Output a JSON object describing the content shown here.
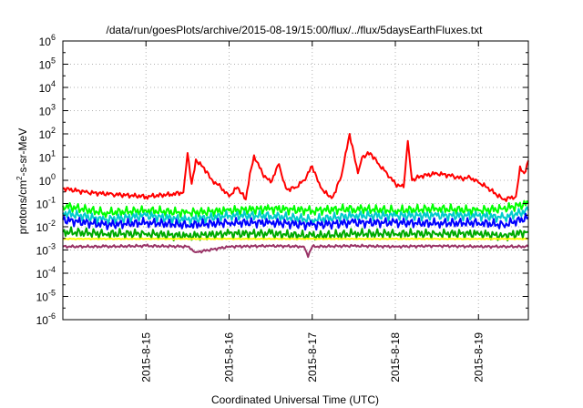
{
  "chart_data": {
    "type": "line",
    "title": "/data/run/goesPlots/archive/2015-08-19/15:00/flux/../flux/5daysEarthFluxes.txt",
    "xlabel": "Coordinated Universal Time (UTC)",
    "ylabel": {
      "pre": "protons/cm",
      "sup": "2",
      "post": "-s-sr-MeV"
    },
    "yscale": "log",
    "ylim": [
      1e-06,
      1000000.0
    ],
    "xlim": [
      0,
      5.6
    ],
    "grid": true,
    "y_ticks": [
      {
        "exp": -6,
        "base": "10",
        "sup": "-6"
      },
      {
        "exp": -5,
        "base": "10",
        "sup": "-5"
      },
      {
        "exp": -4,
        "base": "10",
        "sup": "-4"
      },
      {
        "exp": -3,
        "base": "10",
        "sup": "-3"
      },
      {
        "exp": -2,
        "base": "10",
        "sup": "-2"
      },
      {
        "exp": -1,
        "base": "10",
        "sup": "-1"
      },
      {
        "exp": 0,
        "base": "10",
        "sup": "0"
      },
      {
        "exp": 1,
        "base": "10",
        "sup": "1"
      },
      {
        "exp": 2,
        "base": "10",
        "sup": "2"
      },
      {
        "exp": 3,
        "base": "10",
        "sup": "3"
      },
      {
        "exp": 4,
        "base": "10",
        "sup": "4"
      },
      {
        "exp": 5,
        "base": "10",
        "sup": "5"
      },
      {
        "exp": 6,
        "base": "10",
        "sup": "6"
      }
    ],
    "x_ticks": [
      {
        "x": 1,
        "label": "2015-8-15"
      },
      {
        "x": 2,
        "label": "2015-8-16"
      },
      {
        "x": 3,
        "label": "2015-8-17"
      },
      {
        "x": 4,
        "label": "2015-8-18"
      },
      {
        "x": 5,
        "label": "2015-8-19"
      }
    ],
    "series": [
      {
        "color": "#ff0000",
        "x": [
          0,
          0.3,
          0.6,
          1.0,
          1.3,
          1.45,
          1.5,
          1.55,
          1.6,
          1.75,
          1.8,
          1.9,
          2.0,
          2.1,
          2.2,
          2.25,
          2.3,
          2.4,
          2.5,
          2.6,
          2.65,
          2.7,
          2.8,
          2.9,
          3.0,
          3.05,
          3.1,
          3.2,
          3.25,
          3.35,
          3.4,
          3.45,
          3.5,
          3.55,
          3.6,
          3.7,
          3.8,
          3.9,
          4.0,
          4.1,
          4.15,
          4.2,
          4.3,
          4.5,
          4.7,
          4.8,
          4.9,
          5.0,
          5.1,
          5.3,
          5.45,
          5.5,
          5.55,
          5.6
        ],
        "y": [
          0.45,
          0.3,
          0.25,
          0.2,
          0.25,
          0.3,
          15,
          0.7,
          8,
          2,
          1,
          0.5,
          0.2,
          0.5,
          0.15,
          2,
          12,
          2,
          0.8,
          5,
          1,
          0.4,
          0.5,
          1,
          4,
          1.5,
          0.5,
          0.2,
          0.2,
          1.5,
          15,
          100,
          15,
          2,
          10,
          15,
          5,
          2,
          0.7,
          0.5,
          50,
          1,
          1.5,
          2,
          1.5,
          1.2,
          1.3,
          0.8,
          0.5,
          0.15,
          0.2,
          4,
          2,
          7
        ]
      },
      {
        "color": "#00ff00",
        "x": [
          0,
          0.5,
          1.0,
          1.5,
          2.0,
          2.5,
          3.0,
          3.5,
          4.0,
          4.5,
          5.0,
          5.3,
          5.6
        ],
        "y": [
          0.08,
          0.04,
          0.05,
          0.04,
          0.05,
          0.06,
          0.05,
          0.06,
          0.05,
          0.06,
          0.05,
          0.06,
          0.1
        ]
      },
      {
        "color": "#00cccc",
        "x": [
          0,
          0.5,
          1.0,
          1.5,
          2.0,
          2.5,
          3.0,
          3.5,
          4.0,
          4.5,
          5.0,
          5.3,
          5.6
        ],
        "y": [
          0.04,
          0.02,
          0.03,
          0.02,
          0.03,
          0.03,
          0.02,
          0.03,
          0.03,
          0.03,
          0.03,
          0.025,
          0.05
        ]
      },
      {
        "color": "#0000ff",
        "x": [
          0,
          0.5,
          1.0,
          1.5,
          2.0,
          2.5,
          3.0,
          3.5,
          4.0,
          4.5,
          5.0,
          5.3,
          5.6
        ],
        "y": [
          0.02,
          0.012,
          0.015,
          0.012,
          0.015,
          0.015,
          0.012,
          0.015,
          0.015,
          0.014,
          0.015,
          0.012,
          0.025
        ]
      },
      {
        "color": "#00aa00",
        "x": [
          0,
          0.5,
          1.0,
          1.5,
          2.0,
          2.5,
          3.0,
          3.5,
          4.0,
          4.5,
          5.0,
          5.3,
          5.6
        ],
        "y": [
          0.006,
          0.005,
          0.005,
          0.004,
          0.005,
          0.005,
          0.004,
          0.005,
          0.005,
          0.005,
          0.005,
          0.004,
          0.006
        ]
      },
      {
        "color": "#ffff00",
        "x": [
          0,
          1.0,
          2.0,
          3.0,
          4.0,
          5.0,
          5.6
        ],
        "y": [
          0.003,
          0.003,
          0.003,
          0.003,
          0.003,
          0.003,
          0.003
        ]
      },
      {
        "color": "#993366",
        "x": [
          0,
          0.5,
          1.0,
          1.5,
          1.6,
          2.0,
          2.5,
          2.9,
          2.95,
          3.0,
          3.5,
          4.0,
          4.5,
          5.0,
          5.6
        ],
        "y": [
          0.0014,
          0.0014,
          0.0015,
          0.0014,
          0.0008,
          0.0014,
          0.0015,
          0.0014,
          0.0005,
          0.0014,
          0.0015,
          0.0014,
          0.0015,
          0.0014,
          0.0014
        ]
      }
    ]
  }
}
